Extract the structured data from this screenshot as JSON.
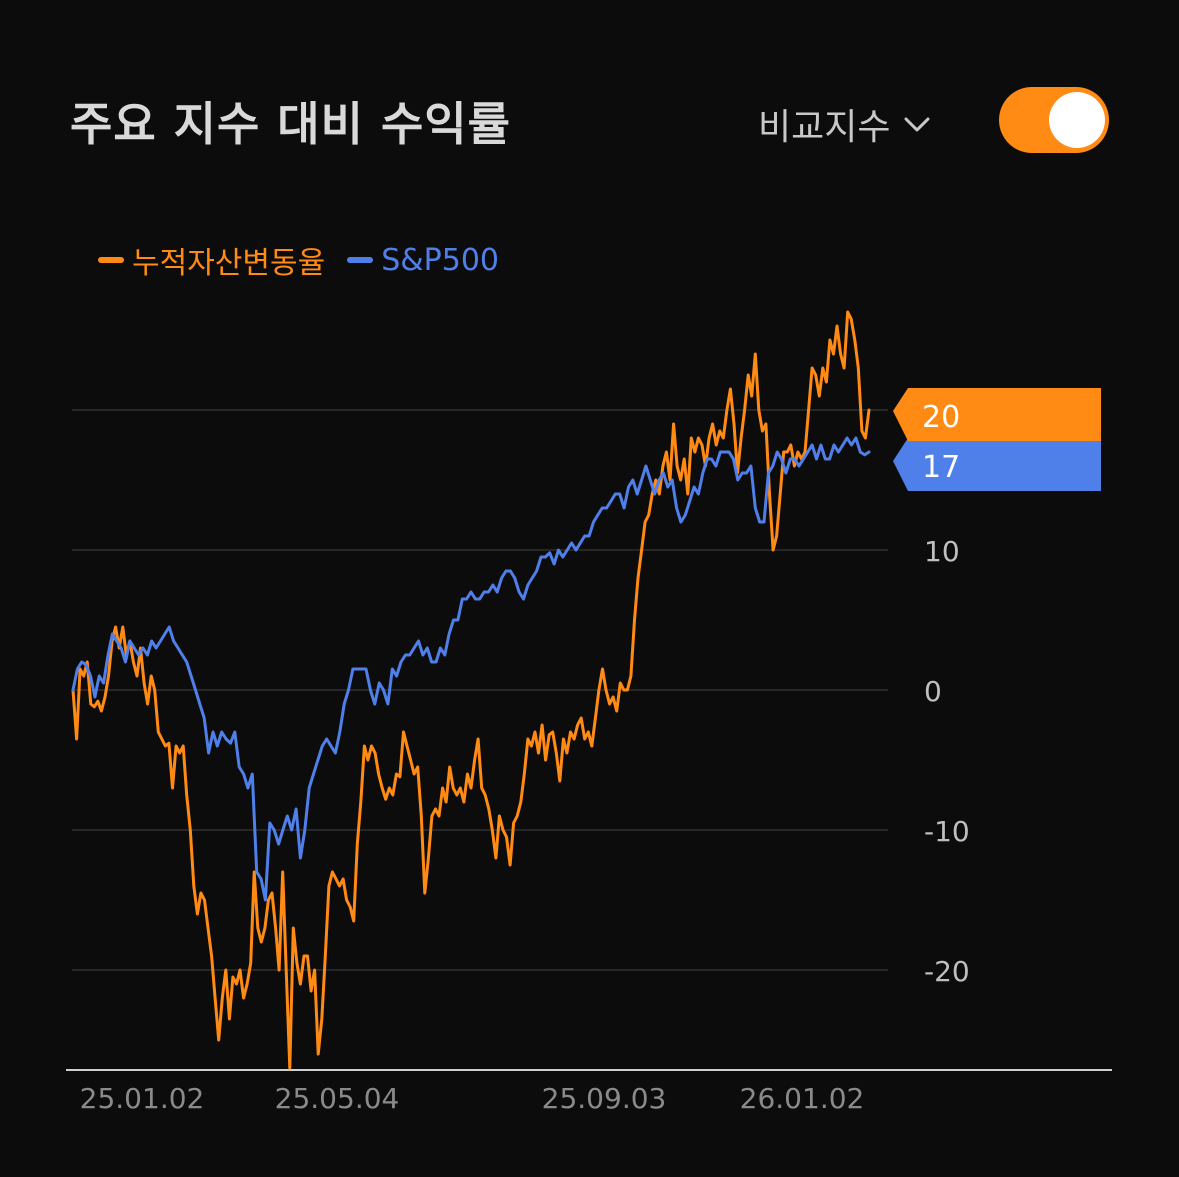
{
  "header": {
    "title": "주요 지수 대비 수익률",
    "compare_label": "비교지수",
    "toggle_on": true
  },
  "colors": {
    "background": "#0d0c0d",
    "portfolio": "#ff8a14",
    "index": "#4f7fe8",
    "grid": "#2e2e2e",
    "tick_text": "#bfbfbf",
    "date_text": "#8a8a8a"
  },
  "icons": {
    "dropdown": "chevron-down-icon"
  },
  "chart_data": {
    "type": "line",
    "title": "주요 지수 대비 수익률",
    "x_ticks": [
      "25.01.02",
      "25.05.04",
      "25.09.03",
      "26.01.02"
    ],
    "y_ticks": [
      -20,
      -10,
      0,
      10,
      20
    ],
    "y_range": [
      -27,
      27
    ],
    "grid": true,
    "legend_position": "top-left",
    "series": [
      {
        "name": "누적자산변동율",
        "color": "#ff8a14",
        "end_label": "20",
        "values": [
          0,
          -3.5,
          1.5,
          1,
          2,
          -1,
          -1.2,
          -0.8,
          -1.5,
          -0.5,
          1,
          3.5,
          4.5,
          3,
          4.5,
          2.5,
          3.5,
          2,
          1,
          3,
          0.5,
          -1,
          1,
          0,
          -3,
          -3.5,
          -4,
          -3.8,
          -7,
          -4,
          -4.5,
          -4,
          -7.5,
          -10,
          -14,
          -16,
          -14.5,
          -15,
          -17,
          -19,
          -22,
          -25,
          -22,
          -20,
          -23.5,
          -20.5,
          -21,
          -20,
          -22,
          -21,
          -19.5,
          -13,
          -17,
          -18,
          -17,
          -15,
          -14.5,
          -17,
          -20,
          -13,
          -20,
          -27,
          -17,
          -19.5,
          -21,
          -19,
          -19,
          -21.5,
          -20,
          -26,
          -23.5,
          -19,
          -14,
          -13,
          -13.5,
          -14,
          -13.5,
          -15,
          -15.5,
          -16.5,
          -11,
          -8,
          -4,
          -5,
          -4,
          -4.5,
          -6,
          -7,
          -7.8,
          -7,
          -7.5,
          -6,
          -6.2,
          -3,
          -4,
          -5,
          -6,
          -5.5,
          -9,
          -14.5,
          -12,
          -9,
          -8.5,
          -9,
          -7,
          -8,
          -5.5,
          -7,
          -7.5,
          -7,
          -8,
          -6,
          -7,
          -5,
          -3.5,
          -7,
          -7.5,
          -8.5,
          -10,
          -12,
          -9,
          -10,
          -10.5,
          -12.5,
          -9.5,
          -9,
          -8,
          -6,
          -3.5,
          -4,
          -3,
          -4.5,
          -2.5,
          -5,
          -3.2,
          -3,
          -4.5,
          -6.5,
          -3.5,
          -4.5,
          -3,
          -3.5,
          -2.5,
          -2,
          -3.5,
          -3,
          -4,
          -2,
          0,
          1.5,
          0,
          -1,
          -0.5,
          -1.5,
          0.5,
          0,
          0,
          1,
          5,
          8,
          10,
          12,
          12.5,
          14,
          15,
          14,
          16,
          17,
          15,
          19,
          16,
          15,
          16.5,
          14,
          18,
          17,
          18,
          17.5,
          16,
          18,
          19,
          17.5,
          18.5,
          18,
          20,
          21.5,
          19,
          15.5,
          18,
          20,
          22.5,
          21,
          24,
          20,
          18.5,
          19,
          14,
          10,
          11,
          14,
          17,
          17,
          17.5,
          16,
          17,
          16.5,
          17,
          20,
          23,
          22.5,
          21,
          23,
          22,
          25,
          24,
          26,
          24,
          23,
          27,
          26.5,
          25,
          23,
          18.5,
          18,
          20
        ]
      },
      {
        "name": "S&P500",
        "color": "#4f7fe8",
        "end_label": "17",
        "values": [
          0,
          1.5,
          2,
          1.8,
          1,
          -0.5,
          1,
          0.5,
          2.5,
          4,
          3.5,
          3,
          2,
          3.5,
          3,
          2.5,
          3,
          2.5,
          3.5,
          3,
          3.5,
          4,
          4.5,
          3.5,
          3,
          2.5,
          2,
          1,
          0,
          -1,
          -2,
          -4.5,
          -3,
          -4,
          -3,
          -3.5,
          -3.8,
          -3,
          -5.5,
          -6,
          -7,
          -6,
          -13,
          -13.5,
          -15,
          -9.5,
          -10,
          -11,
          -10,
          -9,
          -10,
          -8.5,
          -12,
          -10,
          -7,
          -6,
          -5,
          -4,
          -3.5,
          -4,
          -4.5,
          -3,
          -1,
          0,
          1.5,
          1.5,
          1.5,
          1.5,
          0,
          -1,
          0.5,
          0,
          -1,
          1.5,
          1,
          2,
          2.5,
          2.5,
          3,
          3.5,
          2.5,
          3,
          2,
          2,
          3,
          2.5,
          4,
          5,
          5,
          6.5,
          6.5,
          7,
          6.5,
          6.5,
          7,
          7,
          7.5,
          7,
          8,
          8.5,
          8.5,
          8,
          7,
          6.5,
          7.5,
          8,
          8.5,
          9.5,
          9.5,
          9.8,
          9,
          10,
          9.5,
          10,
          10.5,
          10,
          10.5,
          11,
          11,
          12,
          12.5,
          13,
          13,
          13.5,
          14,
          14,
          13,
          14.5,
          15,
          14,
          15,
          16,
          15,
          14,
          15,
          15.5,
          14.5,
          15,
          13,
          12,
          12.5,
          13.5,
          14.5,
          14,
          15.5,
          16.5,
          16.5,
          16,
          17,
          17,
          17,
          16.5,
          15,
          15.5,
          15.5,
          16,
          13,
          12,
          12,
          15.5,
          16,
          17,
          16.5,
          15.5,
          16.5,
          16.5,
          16,
          16.5,
          17,
          17.5,
          16.5,
          17.5,
          16.5,
          16.5,
          17.5,
          17,
          17.5,
          18,
          17.5,
          18,
          17,
          16.8,
          17
        ]
      }
    ]
  }
}
